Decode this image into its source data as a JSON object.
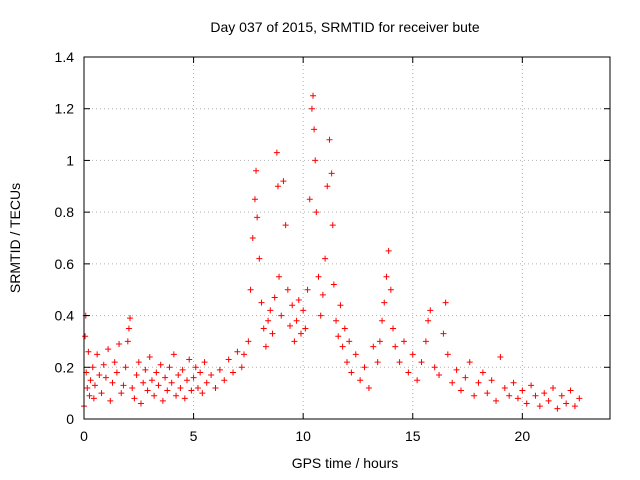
{
  "chart_data": {
    "type": "scatter",
    "title": "Day 037 of 2015, SRMTID for receiver bute",
    "xlabel": "GPS time / hours",
    "ylabel": "SRMTID / TECUs",
    "xlim": [
      0,
      24
    ],
    "ylim": [
      0,
      1.4
    ],
    "xticks": [
      0,
      5,
      10,
      15,
      20
    ],
    "xtick_labels": [
      "0",
      "5",
      "10",
      "15",
      "20"
    ],
    "yticks": [
      0,
      0.2,
      0.4,
      0.6,
      0.8,
      1.0,
      1.2,
      1.4
    ],
    "ytick_labels": [
      "0",
      "0.2",
      "0.4",
      "0.6",
      "0.8",
      "1",
      "1.2",
      "1.4"
    ],
    "grid": true,
    "marker": "+",
    "color": "#ff0000",
    "series": [
      {
        "name": "SRMTID",
        "points": [
          [
            0.0,
            0.05
          ],
          [
            0.05,
            0.32
          ],
          [
            0.08,
            0.4
          ],
          [
            0.1,
            0.18
          ],
          [
            0.15,
            0.12
          ],
          [
            0.2,
            0.26
          ],
          [
            0.25,
            0.09
          ],
          [
            0.3,
            0.15
          ],
          [
            0.4,
            0.2
          ],
          [
            0.45,
            0.08
          ],
          [
            0.5,
            0.13
          ],
          [
            0.6,
            0.25
          ],
          [
            0.7,
            0.17
          ],
          [
            0.8,
            0.1
          ],
          [
            0.9,
            0.21
          ],
          [
            1.0,
            0.16
          ],
          [
            1.1,
            0.27
          ],
          [
            1.2,
            0.07
          ],
          [
            1.3,
            0.14
          ],
          [
            1.4,
            0.22
          ],
          [
            1.5,
            0.18
          ],
          [
            1.6,
            0.29
          ],
          [
            1.7,
            0.1
          ],
          [
            1.8,
            0.13
          ],
          [
            1.9,
            0.2
          ],
          [
            2.0,
            0.3
          ],
          [
            2.05,
            0.35
          ],
          [
            2.1,
            0.39
          ],
          [
            2.2,
            0.12
          ],
          [
            2.3,
            0.08
          ],
          [
            2.4,
            0.17
          ],
          [
            2.5,
            0.22
          ],
          [
            2.6,
            0.06
          ],
          [
            2.7,
            0.14
          ],
          [
            2.8,
            0.19
          ],
          [
            2.9,
            0.11
          ],
          [
            3.0,
            0.24
          ],
          [
            3.1,
            0.15
          ],
          [
            3.2,
            0.09
          ],
          [
            3.3,
            0.18
          ],
          [
            3.4,
            0.13
          ],
          [
            3.5,
            0.21
          ],
          [
            3.6,
            0.07
          ],
          [
            3.7,
            0.16
          ],
          [
            3.8,
            0.11
          ],
          [
            3.9,
            0.2
          ],
          [
            4.0,
            0.14
          ],
          [
            4.1,
            0.25
          ],
          [
            4.2,
            0.09
          ],
          [
            4.3,
            0.17
          ],
          [
            4.4,
            0.12
          ],
          [
            4.5,
            0.19
          ],
          [
            4.6,
            0.08
          ],
          [
            4.7,
            0.15
          ],
          [
            4.8,
            0.23
          ],
          [
            4.9,
            0.11
          ],
          [
            5.0,
            0.16
          ],
          [
            5.1,
            0.2
          ],
          [
            5.2,
            0.12
          ],
          [
            5.3,
            0.18
          ],
          [
            5.4,
            0.1
          ],
          [
            5.5,
            0.22
          ],
          [
            5.6,
            0.14
          ],
          [
            5.8,
            0.17
          ],
          [
            6.0,
            0.12
          ],
          [
            6.2,
            0.19
          ],
          [
            6.4,
            0.15
          ],
          [
            6.6,
            0.23
          ],
          [
            6.8,
            0.18
          ],
          [
            7.0,
            0.26
          ],
          [
            7.2,
            0.2
          ],
          [
            7.3,
            0.25
          ],
          [
            7.5,
            0.3
          ],
          [
            7.6,
            0.5
          ],
          [
            7.7,
            0.7
          ],
          [
            7.8,
            0.85
          ],
          [
            7.85,
            0.96
          ],
          [
            7.9,
            0.78
          ],
          [
            8.0,
            0.62
          ],
          [
            8.1,
            0.45
          ],
          [
            8.2,
            0.35
          ],
          [
            8.3,
            0.28
          ],
          [
            8.4,
            0.38
          ],
          [
            8.5,
            0.42
          ],
          [
            8.6,
            0.33
          ],
          [
            8.7,
            0.47
          ],
          [
            8.8,
            1.03
          ],
          [
            8.85,
            0.9
          ],
          [
            8.9,
            0.55
          ],
          [
            9.0,
            0.4
          ],
          [
            9.1,
            0.92
          ],
          [
            9.2,
            0.75
          ],
          [
            9.3,
            0.5
          ],
          [
            9.4,
            0.36
          ],
          [
            9.5,
            0.44
          ],
          [
            9.6,
            0.3
          ],
          [
            9.7,
            0.38
          ],
          [
            9.8,
            0.46
          ],
          [
            9.9,
            0.33
          ],
          [
            10.0,
            0.42
          ],
          [
            10.1,
            0.35
          ],
          [
            10.2,
            0.5
          ],
          [
            10.3,
            0.85
          ],
          [
            10.4,
            1.2
          ],
          [
            10.45,
            1.25
          ],
          [
            10.5,
            1.12
          ],
          [
            10.55,
            1.0
          ],
          [
            10.6,
            0.8
          ],
          [
            10.7,
            0.55
          ],
          [
            10.8,
            0.4
          ],
          [
            10.9,
            0.48
          ],
          [
            11.0,
            0.62
          ],
          [
            11.1,
            0.9
          ],
          [
            11.2,
            1.08
          ],
          [
            11.3,
            0.95
          ],
          [
            11.35,
            0.75
          ],
          [
            11.4,
            0.52
          ],
          [
            11.5,
            0.38
          ],
          [
            11.6,
            0.32
          ],
          [
            11.7,
            0.44
          ],
          [
            11.8,
            0.28
          ],
          [
            11.9,
            0.35
          ],
          [
            12.0,
            0.22
          ],
          [
            12.1,
            0.3
          ],
          [
            12.2,
            0.18
          ],
          [
            12.4,
            0.25
          ],
          [
            12.6,
            0.15
          ],
          [
            12.8,
            0.2
          ],
          [
            13.0,
            0.12
          ],
          [
            13.2,
            0.28
          ],
          [
            13.4,
            0.22
          ],
          [
            13.5,
            0.3
          ],
          [
            13.6,
            0.38
          ],
          [
            13.7,
            0.45
          ],
          [
            13.8,
            0.55
          ],
          [
            13.9,
            0.65
          ],
          [
            14.0,
            0.5
          ],
          [
            14.1,
            0.35
          ],
          [
            14.2,
            0.28
          ],
          [
            14.4,
            0.22
          ],
          [
            14.6,
            0.3
          ],
          [
            14.8,
            0.18
          ],
          [
            15.0,
            0.25
          ],
          [
            15.2,
            0.15
          ],
          [
            15.4,
            0.22
          ],
          [
            15.6,
            0.3
          ],
          [
            15.7,
            0.38
          ],
          [
            15.8,
            0.42
          ],
          [
            16.0,
            0.2
          ],
          [
            16.2,
            0.17
          ],
          [
            16.4,
            0.33
          ],
          [
            16.5,
            0.45
          ],
          [
            16.6,
            0.25
          ],
          [
            16.8,
            0.14
          ],
          [
            17.0,
            0.19
          ],
          [
            17.2,
            0.11
          ],
          [
            17.4,
            0.16
          ],
          [
            17.6,
            0.22
          ],
          [
            17.8,
            0.09
          ],
          [
            18.0,
            0.14
          ],
          [
            18.2,
            0.18
          ],
          [
            18.4,
            0.1
          ],
          [
            18.6,
            0.15
          ],
          [
            18.8,
            0.07
          ],
          [
            19.0,
            0.24
          ],
          [
            19.2,
            0.12
          ],
          [
            19.4,
            0.09
          ],
          [
            19.6,
            0.14
          ],
          [
            19.8,
            0.08
          ],
          [
            20.0,
            0.11
          ],
          [
            20.2,
            0.06
          ],
          [
            20.4,
            0.13
          ],
          [
            20.6,
            0.09
          ],
          [
            20.8,
            0.05
          ],
          [
            21.0,
            0.1
          ],
          [
            21.2,
            0.07
          ],
          [
            21.4,
            0.12
          ],
          [
            21.6,
            0.04
          ],
          [
            21.8,
            0.09
          ],
          [
            22.0,
            0.06
          ],
          [
            22.2,
            0.11
          ],
          [
            22.4,
            0.05
          ],
          [
            22.6,
            0.08
          ]
        ]
      }
    ]
  }
}
